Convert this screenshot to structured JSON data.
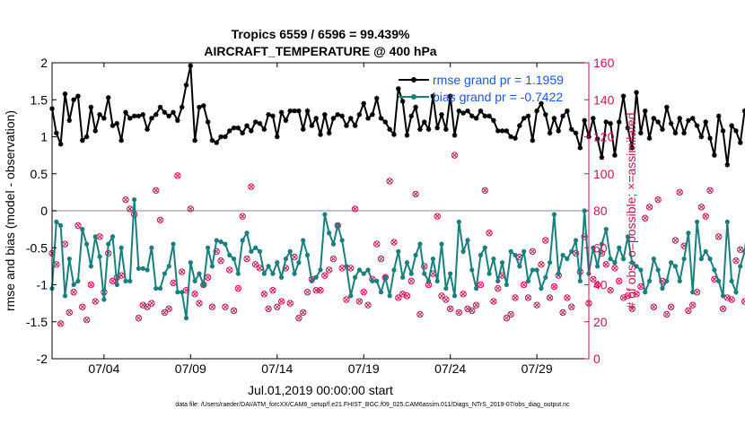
{
  "chart_data": {
    "type": "line",
    "title": "Tropics 6559 / 6596 = 99.439%",
    "subtitle": "AIRCRAFT_TEMPERATURE @ 400 hPa",
    "xlabel": "Jul.01,2019 00:00:00 start",
    "ylabel_left": "rmse and bias (model - observation)",
    "ylabel_right": "# of obs: o=possible; ×=assimilated",
    "x_unit": "days since Jul.01,2019 00:00",
    "x_range": [
      0.5,
      31.5
    ],
    "ylim_left": [
      -2,
      2
    ],
    "ylim_right": [
      0,
      160
    ],
    "left_ticks": [
      -2,
      -1.5,
      -1,
      -0.5,
      0,
      0.5,
      1,
      1.5,
      2
    ],
    "right_ticks": [
      0,
      20,
      40,
      60,
      80,
      100,
      120,
      140,
      160
    ],
    "xticks": [
      {
        "label": "07/04",
        "x": 3.5
      },
      {
        "label": "07/09",
        "x": 8.5
      },
      {
        "label": "07/14",
        "x": 13.5
      },
      {
        "label": "07/19",
        "x": 18.5
      },
      {
        "label": "07/24",
        "x": 23.5
      },
      {
        "label": "07/29",
        "x": 28.5
      }
    ],
    "zero_line": 0,
    "legend_position": "top-right",
    "series": [
      {
        "name": "rmse grand pr = 1.1959",
        "axis": "left",
        "color": "#000000",
        "marker": "star",
        "x_start": 0.5,
        "x_step": 0.25,
        "values": [
          1.38,
          1.05,
          0.9,
          1.58,
          1.22,
          1.5,
          1.55,
          0.95,
          1.0,
          1.4,
          1.08,
          1.3,
          1.25,
          1.53,
          1.15,
          1.18,
          0.95,
          1.33,
          1.25,
          1.28,
          1.28,
          1.3,
          1.1,
          1.25,
          1.3,
          1.4,
          1.33,
          1.28,
          1.33,
          1.22,
          1.4,
          1.7,
          1.96,
          0.95,
          1.4,
          1.42,
          1.2,
          0.95,
          0.92,
          1.0,
          1.0,
          1.08,
          1.12,
          1.12,
          1.05,
          1.15,
          1.08,
          1.2,
          1.18,
          1.1,
          1.3,
          1.28,
          1.0,
          1.33,
          1.22,
          1.35,
          1.35,
          1.35,
          1.1,
          1.35,
          1.15,
          1.25,
          1.03,
          1.3,
          1.05,
          1.25,
          1.3,
          1.28,
          1.15,
          1.25,
          1.15,
          1.3,
          1.45,
          1.25,
          1.3,
          1.52,
          1.25,
          1.2,
          1.1,
          1.03,
          1.65,
          1.48,
          1.02,
          1.28,
          1.4,
          1.1,
          1.2,
          1.1,
          1.55,
          1.12,
          1.3,
          1.1,
          1.55,
          1.02,
          1.35,
          1.32,
          1.35,
          1.28,
          1.25,
          1.35,
          1.28,
          1.28,
          1.22,
          1.08,
          1.08,
          1.08,
          1.0,
          0.98,
          1.15,
          1.25,
          1.28,
          0.95,
          1.35,
          1.45,
          1.3,
          1.05,
          1.25,
          1.08,
          1.28,
          1.35,
          1.1,
          1.05,
          0.85,
          1.22,
          1.0,
          1.25,
          0.97,
          0.72,
          1.2,
          1.18,
          0.75,
          1.2,
          1.55,
          1.12,
          0.85,
          1.6,
          1.05,
          1.35,
          0.98,
          1.25,
          1.2,
          1.1,
          1.4,
          1.18,
          1.05,
          1.25,
          1.05,
          1.22,
          1.25,
          1.15,
          1.0,
          1.2,
          0.98,
          0.75,
          1.28,
          1.08,
          0.62,
          1.15,
          1.08,
          0.92,
          1.35,
          1.38
        ]
      },
      {
        "name": "bias grand pr = -0.7422",
        "axis": "left",
        "color": "#1a7f7f",
        "marker": "circle",
        "x_start": 0.5,
        "x_step": 0.25,
        "values": [
          -1.05,
          -0.15,
          -0.2,
          -1.15,
          -0.65,
          -1.0,
          -0.95,
          -0.25,
          -0.45,
          -0.75,
          -0.35,
          -0.62,
          -1.2,
          -0.45,
          -0.35,
          -1.0,
          -0.5,
          -0.95,
          -0.95,
          0.15,
          -0.78,
          -0.78,
          -0.8,
          -0.5,
          -1.05,
          -1.05,
          -0.85,
          -0.75,
          -0.45,
          -1.1,
          -1.1,
          -1.45,
          -0.7,
          -0.95,
          -0.85,
          -1.0,
          -0.5,
          -0.75,
          -0.4,
          -0.42,
          -0.45,
          -0.6,
          -0.65,
          -0.85,
          -0.4,
          -0.3,
          -0.55,
          -0.5,
          -0.55,
          -0.85,
          -0.75,
          -0.85,
          -0.7,
          -0.9,
          -0.65,
          -0.55,
          -0.85,
          -0.7,
          -0.4,
          -0.6,
          -0.95,
          -0.9,
          -0.8,
          -0.05,
          -0.3,
          -0.45,
          -0.2,
          -0.4,
          -0.75,
          -1.15,
          -0.9,
          -0.8,
          -0.85,
          -0.8,
          -0.95,
          -0.95,
          -1.1,
          -0.9,
          -1.15,
          -0.8,
          -0.55,
          -0.9,
          -0.7,
          -0.85,
          -0.6,
          -0.45,
          -0.85,
          -0.95,
          -0.65,
          -0.95,
          -0.45,
          -1.05,
          -0.85,
          -1.15,
          -0.15,
          -0.55,
          -0.4,
          -0.8,
          -1.05,
          -0.6,
          -0.5,
          -0.85,
          -0.65,
          -0.95,
          -0.7,
          -1.0,
          -0.55,
          -0.6,
          -0.75,
          -0.55,
          -0.95,
          -0.8,
          -0.8,
          -1.05,
          -0.9,
          -0.7,
          -0.05,
          -0.85,
          -0.6,
          -0.65,
          -0.55,
          -0.4,
          -0.95,
          0.0,
          -0.85,
          -0.5,
          -0.75,
          -0.45,
          -0.25,
          -0.65,
          -0.7,
          -0.5,
          -0.65,
          -0.35,
          -0.7,
          -0.75,
          -0.8,
          -1.1,
          -0.95,
          -0.65,
          -0.8,
          -1.05,
          -0.95,
          -0.7,
          -0.75,
          -0.95,
          -0.65,
          -0.3,
          -1.1,
          -0.15,
          -0.65,
          -0.55,
          -0.65,
          -0.8,
          -0.95,
          -1.15,
          -0.15,
          -0.95,
          -1.1,
          -0.75,
          -0.55,
          -0.1,
          -0.95,
          -0.95
        ]
      },
      {
        "name": "# possible obs",
        "axis": "right",
        "color": "#cc1155",
        "marker": "o",
        "x_start": 0.5,
        "x_step": 0.25,
        "values": [
          57,
          51,
          19,
          62,
          25,
          36,
          72,
          28,
          21,
          40,
          31,
          66,
          36,
          57,
          42,
          44,
          45,
          86,
          81,
          78,
          22,
          29,
          28,
          30,
          91,
          75,
          25,
          27,
          41,
          99,
          47,
          37,
          81,
          35,
          30,
          40,
          44,
          28,
          58,
          53,
          28,
          48,
          26,
          38,
          77,
          54,
          93,
          51,
          49,
          35,
          27,
          37,
          28,
          31,
          49,
          30,
          55,
          22,
          25,
          36,
          43,
          37,
          37,
          45,
          48,
          54,
          72,
          49,
          32,
          49,
          81,
          31,
          36,
          29,
          43,
          62,
          54,
          44,
          96,
          63,
          33,
          35,
          34,
          42,
          89,
          24,
          50,
          40,
          46,
          77,
          34,
          32,
          27,
          110,
          25,
          35,
          27,
          26,
          29,
          40,
          91,
          68,
          31,
          38,
          45,
          22,
          24,
          33,
          55,
          40,
          33,
          58,
          29,
          51,
          64,
          33,
          39,
          45,
          25,
          33,
          28,
          57,
          47,
          66,
          30,
          43,
          40,
          57,
          51,
          37,
          49,
          42,
          33,
          34,
          27,
          35,
          39,
          76,
          82,
          28,
          86,
          42,
          24,
          28,
          64,
          90,
          61,
          26,
          29,
          36,
          82,
          77,
          91,
          43,
          66,
          27,
          33,
          32,
          53,
          59,
          31,
          29,
          38,
          0
        ]
      },
      {
        "name": "# assimilated obs",
        "axis": "right",
        "color": "#cc1155",
        "marker": "x",
        "x_start": 0.5,
        "x_step": 0.25,
        "values": [
          57,
          51,
          19,
          62,
          25,
          36,
          72,
          28,
          21,
          40,
          31,
          66,
          36,
          57,
          42,
          44,
          45,
          86,
          81,
          78,
          22,
          29,
          28,
          30,
          91,
          75,
          25,
          27,
          41,
          99,
          47,
          37,
          81,
          35,
          30,
          40,
          44,
          28,
          58,
          53,
          28,
          48,
          26,
          38,
          77,
          54,
          93,
          51,
          49,
          35,
          27,
          37,
          28,
          31,
          49,
          30,
          55,
          22,
          25,
          36,
          43,
          37,
          37,
          45,
          48,
          54,
          72,
          49,
          32,
          49,
          81,
          31,
          36,
          29,
          43,
          62,
          54,
          44,
          96,
          63,
          33,
          35,
          34,
          42,
          89,
          24,
          50,
          40,
          46,
          77,
          34,
          32,
          27,
          110,
          25,
          35,
          27,
          26,
          29,
          40,
          91,
          68,
          31,
          38,
          45,
          22,
          24,
          33,
          55,
          40,
          33,
          58,
          29,
          51,
          64,
          33,
          39,
          45,
          25,
          33,
          28,
          57,
          47,
          66,
          30,
          43,
          40,
          57,
          51,
          37,
          49,
          42,
          33,
          34,
          27,
          35,
          39,
          76,
          82,
          28,
          86,
          42,
          24,
          28,
          64,
          90,
          61,
          26,
          29,
          36,
          82,
          77,
          91,
          43,
          66,
          27,
          33,
          32,
          53,
          59,
          31,
          29,
          38,
          0
        ]
      }
    ]
  },
  "footnote": "data file: /Users/raeder/DAI/ATM_forcXX/CAM6_setup/f.e21.FHIST_BGC.f09_025.CAM6assim.011/Diags_NTrS_2019-07/obs_diag_output.nc",
  "colors": {
    "axis_right": "#cc1155",
    "legend_text": "#1a56e0",
    "zero_line": "#b0b0b0"
  }
}
